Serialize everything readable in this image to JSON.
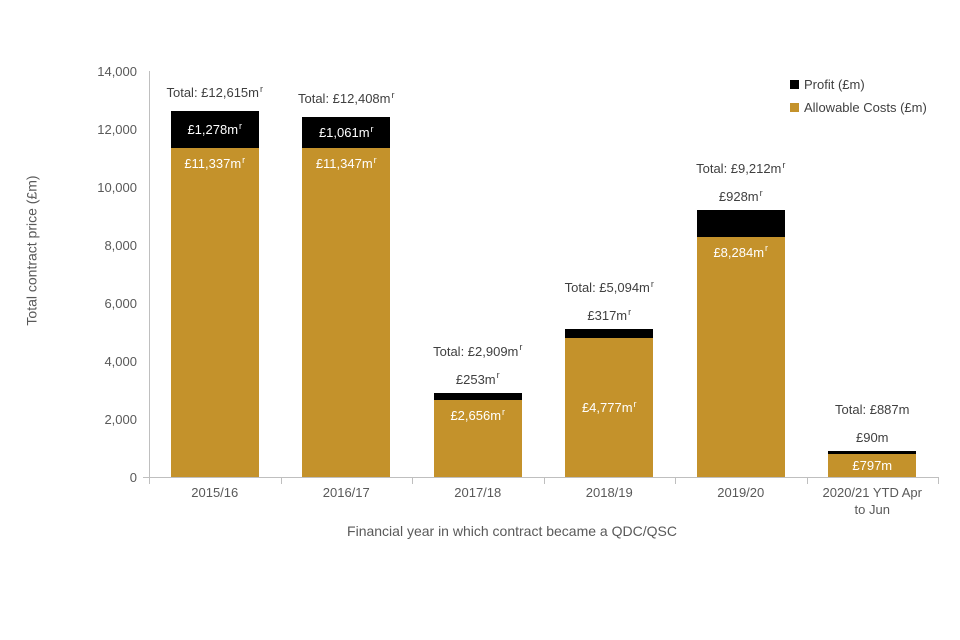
{
  "chart_data": {
    "type": "bar",
    "stacked": true,
    "title": "",
    "xlabel": "Financial year in which contract became a QDC/QSC",
    "ylabel": "Total contract price (£m)",
    "ylim": [
      0,
      14000
    ],
    "ytick_labels": [
      "0",
      "2,000",
      "4,000",
      "6,000",
      "8,000",
      "10,000",
      "12,000",
      "14,000"
    ],
    "grid": false,
    "legend_position": "top-right",
    "categories": [
      "2015/16",
      "2016/17",
      "2017/18",
      "2018/19",
      "2019/20",
      "2020/21 YTD Apr to Jun"
    ],
    "series": [
      {
        "name": "Profit (£m)",
        "color": "#000000",
        "values": [
          1278,
          1061,
          253,
          317,
          928,
          90
        ]
      },
      {
        "name": "Allowable Costs (£m)",
        "color": "#C4922B",
        "values": [
          11337,
          11347,
          2656,
          4777,
          8284,
          797
        ]
      }
    ],
    "totals": [
      12615,
      12408,
      2909,
      5094,
      9212,
      887
    ],
    "bar_labels": [
      {
        "total": "Total: £12,615m",
        "total_sup": "r",
        "profit": "£1,278m",
        "profit_sup": "r",
        "profit_pos": "inside",
        "cost": "£11,337m",
        "cost_sup": "r",
        "cost_pos": "top"
      },
      {
        "total": "Total: £12,408m",
        "total_sup": "r",
        "profit": "£1,061m",
        "profit_sup": "r",
        "profit_pos": "inside",
        "cost": "£11,347m",
        "cost_sup": "r",
        "cost_pos": "top"
      },
      {
        "total": "Total: £2,909m",
        "total_sup": "r",
        "profit": "£253m",
        "profit_sup": "r",
        "profit_pos": "above",
        "cost": "£2,656m",
        "cost_sup": "r",
        "cost_pos": "top"
      },
      {
        "total": "Total: £5,094m",
        "total_sup": "r",
        "profit": "£317m",
        "profit_sup": "r",
        "profit_pos": "above",
        "cost": "£4,777m",
        "cost_sup": "r",
        "cost_pos": "center"
      },
      {
        "total": "Total: £9,212m",
        "total_sup": "r",
        "profit": "£928m",
        "profit_sup": "r",
        "profit_pos": "above",
        "cost": "£8,284m",
        "cost_sup": "r",
        "cost_pos": "top"
      },
      {
        "total": "Total: £887m",
        "total_sup": "",
        "profit": "£90m",
        "profit_sup": "",
        "profit_pos": "above",
        "cost": "£797m",
        "cost_sup": "",
        "cost_pos": "center"
      }
    ],
    "colors": {
      "profit": "#000000",
      "allowable_costs": "#C4922B",
      "axis_line": "#BFBFBF",
      "tick_text": "#595959",
      "label_text": "#404040",
      "inside_label_text": "#FFFFFF"
    }
  }
}
